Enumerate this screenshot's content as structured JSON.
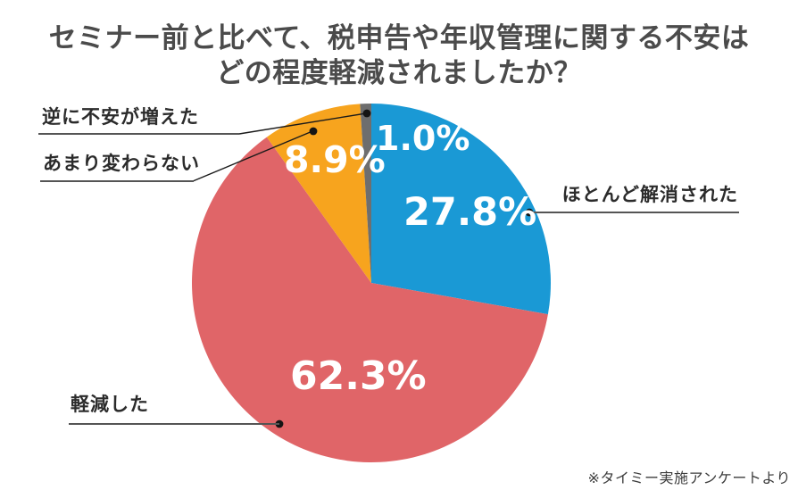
{
  "title": {
    "line1": "セミナー前と比べて、税申告や年収管理に関する不安は",
    "line2": "どの程度軽減されましたか？"
  },
  "footnote": "※タイミー実施アンケートより",
  "chart_data": {
    "type": "pie",
    "title": "セミナー前と比べて、税申告や年収管理に関する不安はどの程度軽減されましたか？",
    "start_angle_deg": -90,
    "direction": "clockwise",
    "slices": [
      {
        "id": "resolved",
        "label": "ほとんど解消された",
        "value": 27.8,
        "display": "27.8%",
        "color": "#1a99d5"
      },
      {
        "id": "reduced",
        "label": "軽減した",
        "value": 62.3,
        "display": "62.3%",
        "color": "#e06568"
      },
      {
        "id": "unchanged",
        "label": "あまり変わらない",
        "value": 8.9,
        "display": "8.9%",
        "color": "#f7a41e"
      },
      {
        "id": "increased",
        "label": "逆に不安が増えた",
        "value": 1.0,
        "display": "1.0%",
        "color": "#6e6e6e"
      }
    ],
    "source_note": "※タイミー実施アンケートより"
  }
}
